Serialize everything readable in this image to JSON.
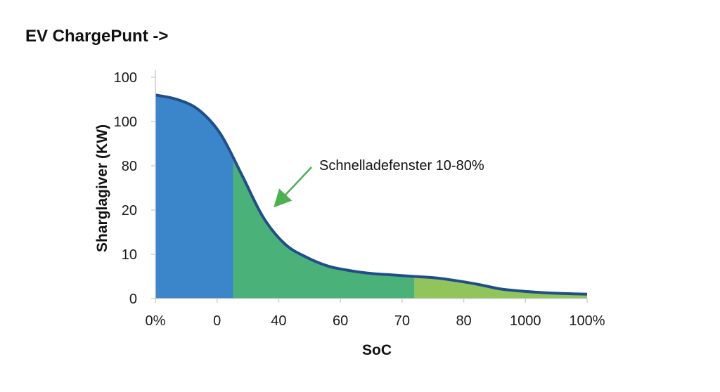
{
  "chart_data": {
    "type": "area",
    "title": "EV ChargePunt ->",
    "xlabel": "SoC",
    "ylabel": "Sharglagiver (KW)",
    "x_tick_labels": [
      "0%",
      "0",
      "40",
      "60",
      "70",
      "80",
      "1000",
      "100%"
    ],
    "y_tick_labels": [
      "0",
      "10",
      "20",
      "80",
      "100",
      "100"
    ],
    "xlim": [
      0,
      100
    ],
    "series": [
      {
        "x": [
          0,
          5,
          10,
          15,
          20,
          25,
          30,
          35,
          40,
          45,
          50,
          55,
          60,
          65,
          70,
          75,
          80,
          85,
          90,
          95,
          100
        ],
        "values": [
          138,
          135,
          128,
          112,
          84,
          55,
          37,
          28,
          22,
          19,
          17,
          16,
          15,
          14,
          12,
          9.5,
          6.5,
          5,
          4,
          3.4,
          3
        ]
      }
    ],
    "bands": [
      {
        "from": 0,
        "to": 18,
        "color": "#2f7ec8"
      },
      {
        "from": 18,
        "to": 60,
        "color": "#3fae70"
      },
      {
        "from": 60,
        "to": 100,
        "color": "#8cc152"
      }
    ],
    "line_color": "#1f4f8a",
    "annotation": {
      "text": "Schnelladefenster 10-80%",
      "arrow_color": "#4caf50"
    },
    "grid": false,
    "legend": "none"
  }
}
